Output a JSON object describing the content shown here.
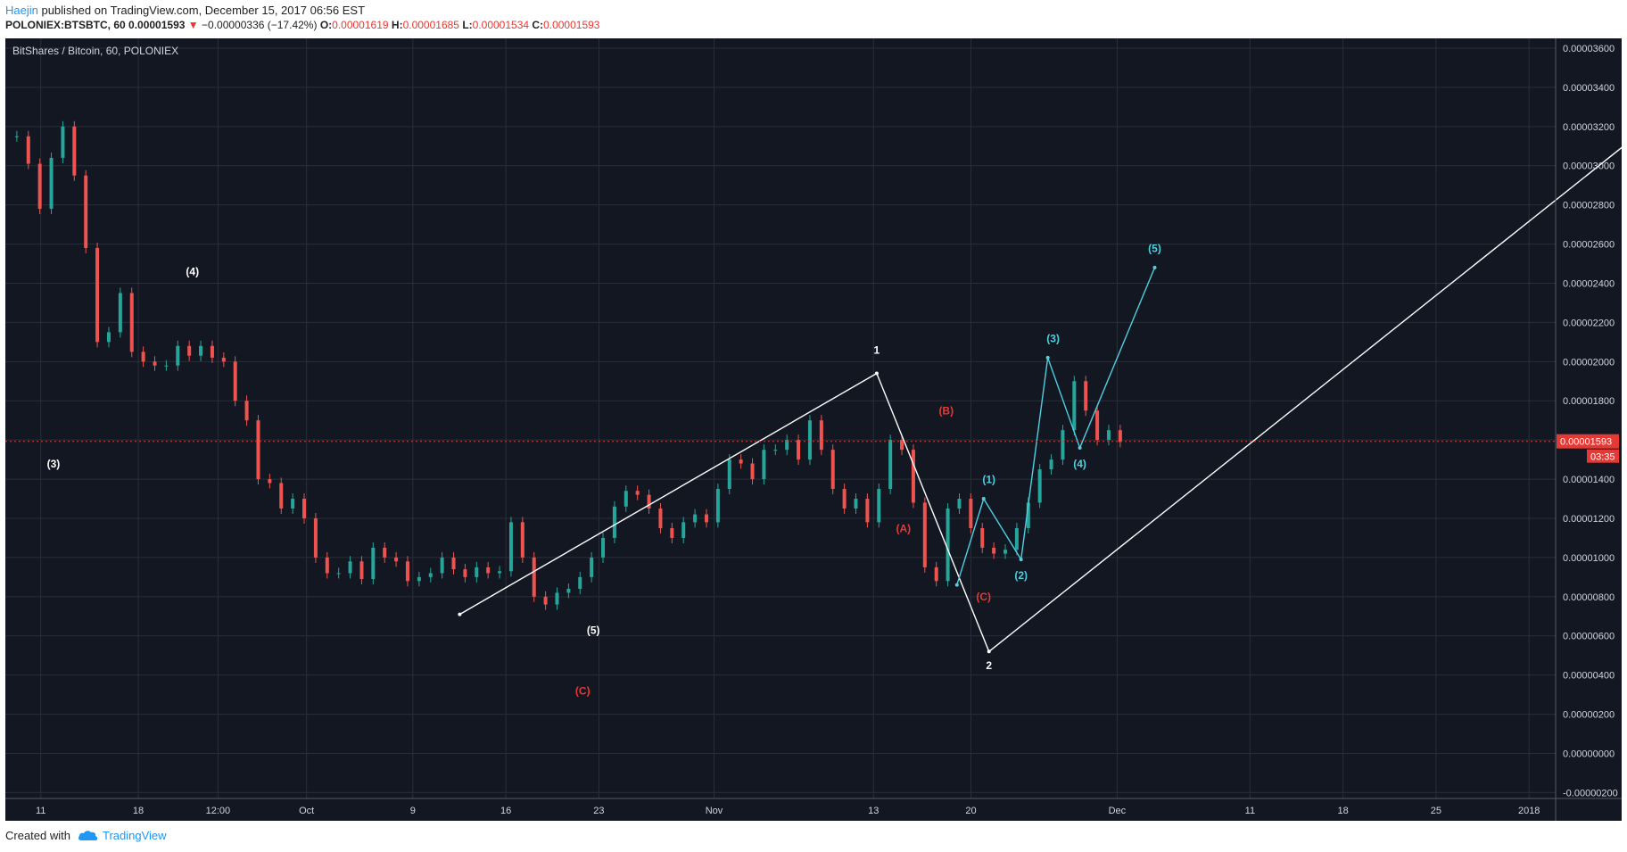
{
  "header": {
    "author": "Haejin",
    "published_text": " published on TradingView.com, December 15, 2017 06:56 EST",
    "symbol_line": "POLONIEX:BTSBTC, 60",
    "last_price": "0.00001593",
    "change": "−0.00000336 (−17.42%)",
    "open_label": "O:",
    "open": "0.00001619",
    "high_label": "H:",
    "high": "0.00001685",
    "low_label": "L:",
    "low": "0.00001534",
    "close_label": "C:",
    "close": "0.00001593"
  },
  "footer": {
    "created_with": "Created with",
    "brand": "TradingView"
  },
  "colors": {
    "background": "#131722",
    "grid": "#2a2e39",
    "up": "#26a69a",
    "down": "#ef5350",
    "white_wave": "#ffffff",
    "cyan_wave": "#4dd0e1",
    "red_label": "#e53935",
    "price_tag": "#e53935"
  },
  "chart_data": {
    "type": "line",
    "title": "BitShares / Bitcoin, 60, POLONIEX",
    "x_ticks": [
      "11",
      "18",
      "12:00",
      "Oct",
      "9",
      "16",
      "23",
      "Nov",
      "13",
      "20",
      "Dec",
      "11",
      "18",
      "25",
      "2018"
    ],
    "y_ticks": [
      "0.00003600",
      "0.00003400",
      "0.00003200",
      "0.00003000",
      "0.00002800",
      "0.00002600",
      "0.00002400",
      "0.00002200",
      "0.00002000",
      "0.00001800",
      "0.00001600",
      "0.00001400",
      "0.00001200",
      "0.00001000",
      "0.00000800",
      "0.00000600",
      "0.00000400",
      "0.00000200",
      "0.00000000",
      "-0.00000200"
    ],
    "ylim": [
      -2.3e-06,
      3.65e-05
    ],
    "price_tag": {
      "value": 1.593e-05,
      "label": "0.00001593",
      "timer": "03:35"
    },
    "series": [
      {
        "name": "BTSBTC",
        "color": "#26a69a",
        "x": [
          1,
          2,
          3,
          4,
          5,
          6,
          7,
          8,
          9,
          10,
          11,
          12,
          13,
          14,
          15,
          16,
          17,
          18,
          19,
          20,
          21,
          22,
          23,
          24,
          25,
          26,
          27,
          28,
          29,
          30,
          31,
          32,
          33,
          34,
          35,
          36,
          37,
          38,
          39,
          40,
          41,
          42,
          43,
          44,
          45,
          46,
          47,
          48,
          49,
          50,
          51,
          52,
          53,
          54,
          55,
          56,
          57,
          58,
          59,
          60,
          61,
          62,
          63,
          64,
          65,
          66,
          67,
          68,
          69,
          70,
          71,
          72,
          73,
          74,
          75,
          76,
          77,
          78,
          79,
          80,
          81,
          82,
          83,
          84,
          85,
          86,
          87,
          88,
          89,
          90,
          91,
          92,
          93,
          94,
          95,
          96,
          97
        ],
        "y": [
          3.15e-05,
          3.01e-05,
          2.78e-05,
          3.04e-05,
          3.2e-05,
          2.95e-05,
          2.58e-05,
          2.1e-05,
          2.15e-05,
          2.35e-05,
          2.05e-05,
          2e-05,
          1.98e-05,
          1.98e-05,
          2.08e-05,
          2.03e-05,
          2.08e-05,
          2.02e-05,
          2e-05,
          1.8e-05,
          1.7e-05,
          1.4e-05,
          1.38e-05,
          1.25e-05,
          1.3e-05,
          1.2e-05,
          1e-05,
          9.2e-06,
          9.2e-06,
          9.8e-06,
          8.9e-06,
          1.05e-05,
          1e-05,
          9.8e-06,
          8.8e-06,
          9e-06,
          9.2e-06,
          1e-05,
          9.4e-06,
          9e-06,
          9.5e-06,
          9.2e-06,
          9.3e-06,
          1.18e-05,
          1e-05,
          8e-06,
          7.6e-06,
          8.2e-06,
          8.4e-06,
          9e-06,
          1e-05,
          1.1e-05,
          1.26e-05,
          1.34e-05,
          1.32e-05,
          1.25e-05,
          1.15e-05,
          1.1e-05,
          1.18e-05,
          1.22e-05,
          1.18e-05,
          1.35e-05,
          1.5e-05,
          1.48e-05,
          1.4e-05,
          1.55e-05,
          1.55e-05,
          1.6e-05,
          1.5e-05,
          1.7e-05,
          1.55e-05,
          1.35e-05,
          1.25e-05,
          1.3e-05,
          1.18e-05,
          1.35e-05,
          1.6e-05,
          1.55e-05,
          1.28e-05,
          9.5e-06,
          8.8e-06,
          1.25e-05,
          1.3e-05,
          1.15e-05,
          1.05e-05,
          1.02e-05,
          1.04e-05,
          1.15e-05,
          1.28e-05,
          1.45e-05,
          1.5e-05,
          1.65e-05,
          1.9e-05,
          1.75e-05,
          1.6e-05,
          1.65e-05,
          1.59e-05
        ]
      },
      {
        "name": "white impulse",
        "color": "#ffffff",
        "x": [
          85,
          163,
          184,
          328
        ],
        "y": [
          7.1e-06,
          1.94e-05,
          5.2e-06,
          3.65e-05
        ]
      },
      {
        "name": "cyan impulse",
        "color": "#4dd0e1",
        "x": [
          178,
          183,
          190,
          195,
          201,
          215
        ],
        "y": [
          8.6e-06,
          1.3e-05,
          9.9e-06,
          2.02e-05,
          1.56e-05,
          2.48e-05
        ]
      }
    ],
    "x_range": [
      0,
      290
    ],
    "annotations": [
      {
        "text": "(3)",
        "x": 9,
        "y": 1.46e-05,
        "color": "#ffffff"
      },
      {
        "text": "(4)",
        "x": 35,
        "y": 2.44e-05,
        "color": "#ffffff"
      },
      {
        "text": "(5)",
        "x": 110,
        "y": 6.1e-06,
        "color": "#ffffff"
      },
      {
        "text": "(C)",
        "x": 108,
        "y": 3e-06,
        "color": "#e53935"
      },
      {
        "text": "1",
        "x": 163,
        "y": 2.04e-05,
        "color": "#ffffff"
      },
      {
        "text": "(A)",
        "x": 168,
        "y": 1.13e-05,
        "color": "#e53935"
      },
      {
        "text": "(B)",
        "x": 176,
        "y": 1.73e-05,
        "color": "#e53935"
      },
      {
        "text": "(C)",
        "x": 183,
        "y": 7.8e-06,
        "color": "#e53935"
      },
      {
        "text": "2",
        "x": 184,
        "y": 4.3e-06,
        "color": "#ffffff"
      },
      {
        "text": "(1)",
        "x": 184,
        "y": 1.38e-05,
        "color": "#4dd0e1"
      },
      {
        "text": "(2)",
        "x": 190,
        "y": 8.9e-06,
        "color": "#4dd0e1"
      },
      {
        "text": "(3)",
        "x": 196,
        "y": 2.1e-05,
        "color": "#4dd0e1"
      },
      {
        "text": "(4)",
        "x": 201,
        "y": 1.46e-05,
        "color": "#4dd0e1"
      },
      {
        "text": "(5)",
        "x": 215,
        "y": 2.56e-05,
        "color": "#4dd0e1"
      }
    ]
  }
}
